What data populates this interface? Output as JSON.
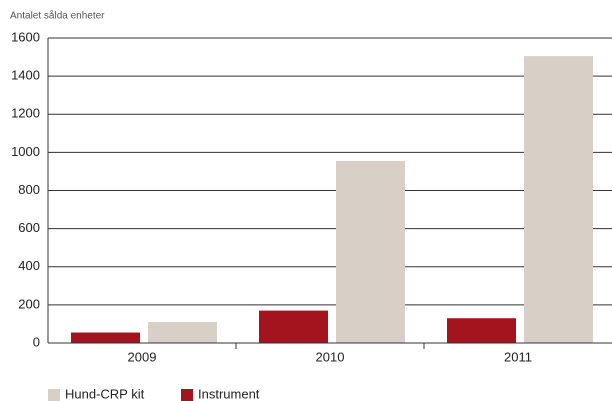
{
  "chart_data": {
    "type": "bar",
    "y_label": "Antalet sålda enheter",
    "categories": [
      "2009",
      "2010",
      "2011"
    ],
    "series": [
      {
        "name": "Hund-CRP kit",
        "color": "#d8cfc6",
        "values": [
          110,
          955,
          1505
        ]
      },
      {
        "name": "Instrument",
        "color": "#a3141f",
        "values": [
          55,
          170,
          130
        ]
      }
    ],
    "ylim": [
      0,
      1600
    ],
    "yticks": [
      0,
      200,
      400,
      600,
      800,
      1000,
      1200,
      1400,
      1600
    ],
    "grid": true,
    "legend": "bottom"
  }
}
